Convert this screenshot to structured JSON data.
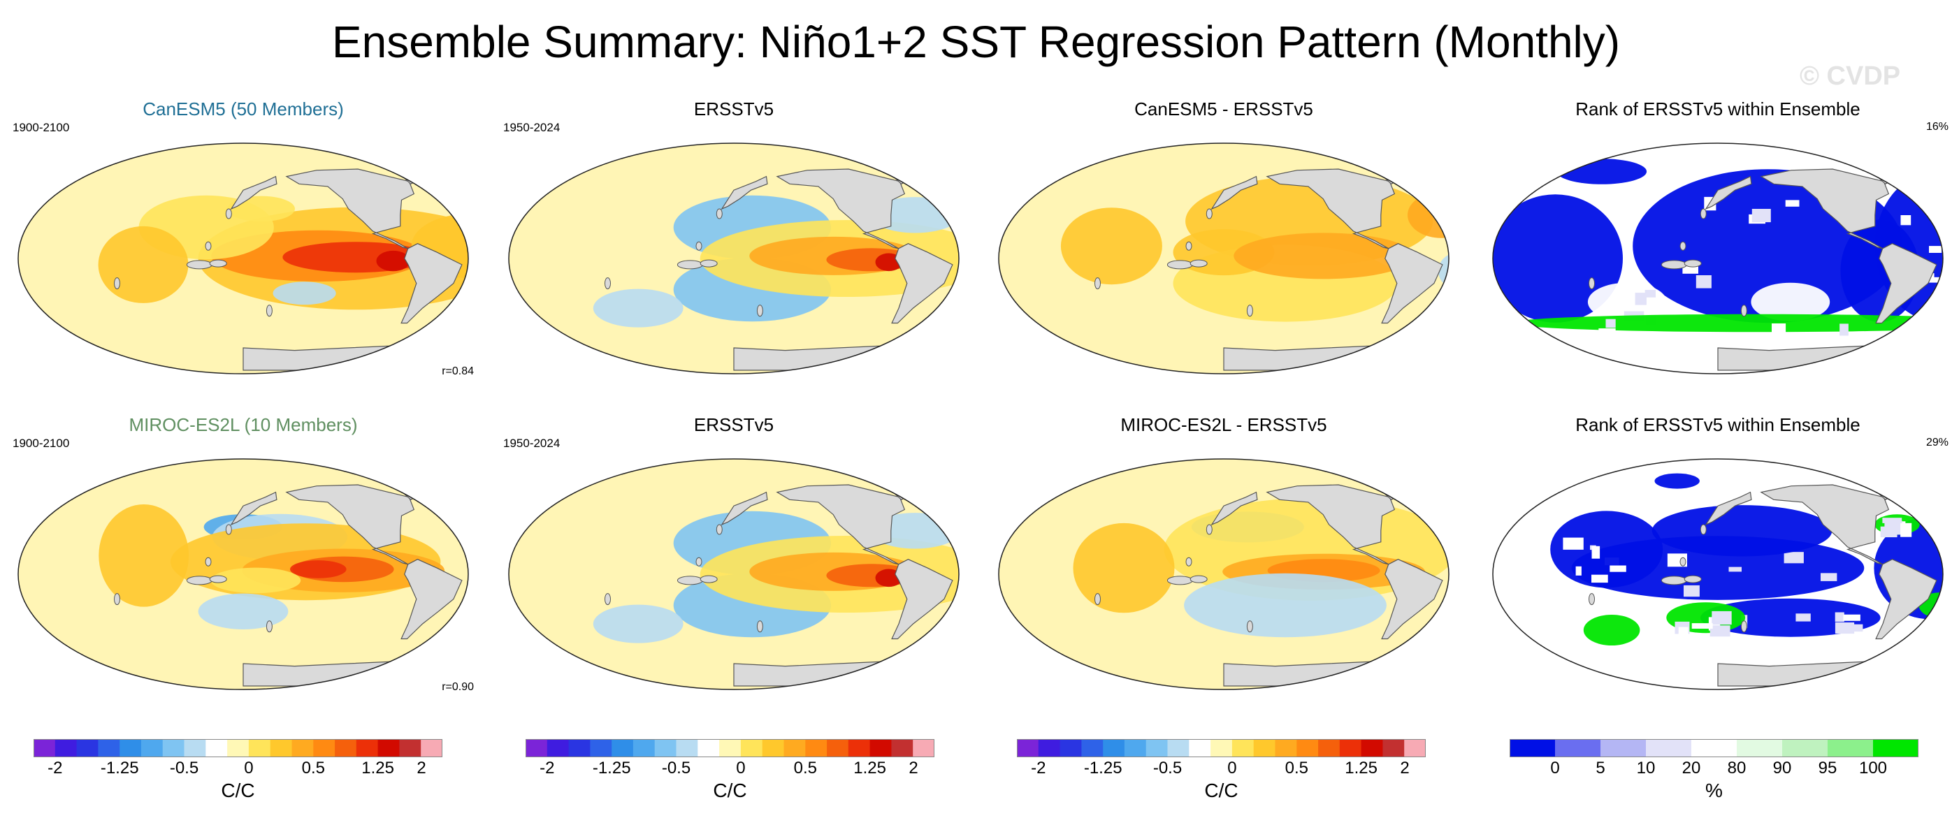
{
  "title": "Ensemble Summary: Niño1+2 SST Regression Pattern (Monthly)",
  "watermark": "© CVDP",
  "colors": {
    "model1_title": "#1f6f95",
    "model2_title": "#5f8f60",
    "land": "#dadada",
    "coast": "#555555",
    "regression_scale": [
      "#7b24d8",
      "#3f1ce0",
      "#2a35e2",
      "#2e62e8",
      "#2f8ee8",
      "#4fa8ee",
      "#7fc4f2",
      "#b8dcf2",
      "#ffffff",
      "#fff8b6",
      "#ffe45a",
      "#ffc82c",
      "#ffaa20",
      "#ff8a12",
      "#f5600c",
      "#ec3008",
      "#d20a00",
      "#c23030",
      "#f7aab4"
    ],
    "rank_scale": [
      "#0010e6",
      "#6a6ef0",
      "#b4b6f4",
      "#e2e2f8",
      "#ffffff",
      "#e2fae2",
      "#bff2bf",
      "#8cf08c",
      "#00e600"
    ]
  },
  "panels": [
    {
      "title": "CanESM5 (50 Members)",
      "years": "1900-2100",
      "stat": "r=0.84",
      "type": "regression",
      "pattern": "model"
    },
    {
      "title": "ERSSTv5",
      "years": "1950-2024",
      "type": "regression",
      "pattern": "obs"
    },
    {
      "title": "CanESM5 - ERSSTv5",
      "type": "regression",
      "pattern": "diff"
    },
    {
      "title": "Rank of ERSSTv5 within Ensemble",
      "stat": "16%",
      "type": "rank",
      "pattern": "rank1"
    },
    {
      "title": "MIROC-ES2L (10 Members)",
      "years": "1900-2100",
      "stat": "r=0.90",
      "type": "regression",
      "pattern": "model2"
    },
    {
      "title": "ERSSTv5",
      "years": "1950-2024",
      "type": "regression",
      "pattern": "obs"
    },
    {
      "title": "MIROC-ES2L - ERSSTv5",
      "type": "regression",
      "pattern": "diff2"
    },
    {
      "title": "Rank of ERSSTv5 within Ensemble",
      "stat": "29%",
      "type": "rank",
      "pattern": "rank2"
    }
  ],
  "colorbars": [
    {
      "type": "regression",
      "units": "C/C",
      "ticks": [
        "-2",
        "-1.25",
        "-0.5",
        "0",
        "0.5",
        "1.25",
        "2"
      ]
    },
    {
      "type": "regression",
      "units": "C/C",
      "ticks": [
        "-2",
        "-1.25",
        "-0.5",
        "0",
        "0.5",
        "1.25",
        "2"
      ]
    },
    {
      "type": "regression",
      "units": "C/C",
      "ticks": [
        "-2",
        "-1.25",
        "-0.5",
        "0",
        "0.5",
        "1.25",
        "2"
      ]
    },
    {
      "type": "rank",
      "units": "%",
      "ticks": [
        "0",
        "5",
        "10",
        "20",
        "80",
        "90",
        "95",
        "100"
      ]
    }
  ],
  "chart_data": [
    {
      "type": "heatmap",
      "title": "CanESM5 (50 Members)",
      "period": "1900-2100",
      "pattern_correlation": 0.84,
      "units": "C/C",
      "colorbar_range": [
        -2,
        2
      ],
      "max_region": "eastern equatorial Pacific",
      "max_value_approx": 1.5
    },
    {
      "type": "heatmap",
      "title": "ERSSTv5",
      "period": "1950-2024",
      "units": "C/C",
      "colorbar_range": [
        -2,
        2
      ],
      "max_region": "eastern equatorial Pacific",
      "max_value_approx": 1.75
    },
    {
      "type": "heatmap",
      "title": "CanESM5 - ERSSTv5",
      "units": "C/C",
      "colorbar_range": [
        -2,
        2
      ]
    },
    {
      "type": "heatmap",
      "title": "Rank of ERSSTv5 within Ensemble",
      "units": "%",
      "summary_percent": 16,
      "bins": [
        0,
        5,
        10,
        20,
        80,
        90,
        95,
        100
      ]
    },
    {
      "type": "heatmap",
      "title": "MIROC-ES2L (10 Members)",
      "period": "1900-2100",
      "pattern_correlation": 0.9,
      "units": "C/C",
      "colorbar_range": [
        -2,
        2
      ],
      "max_region": "central-eastern equatorial Pacific",
      "max_value_approx": 1.75
    },
    {
      "type": "heatmap",
      "title": "ERSSTv5",
      "period": "1950-2024",
      "units": "C/C",
      "colorbar_range": [
        -2,
        2
      ]
    },
    {
      "type": "heatmap",
      "title": "MIROC-ES2L - ERSSTv5",
      "units": "C/C",
      "colorbar_range": [
        -2,
        2
      ]
    },
    {
      "type": "heatmap",
      "title": "Rank of ERSSTv5 within Ensemble",
      "units": "%",
      "summary_percent": 29,
      "bins": [
        0,
        5,
        10,
        20,
        80,
        90,
        95,
        100
      ]
    }
  ]
}
